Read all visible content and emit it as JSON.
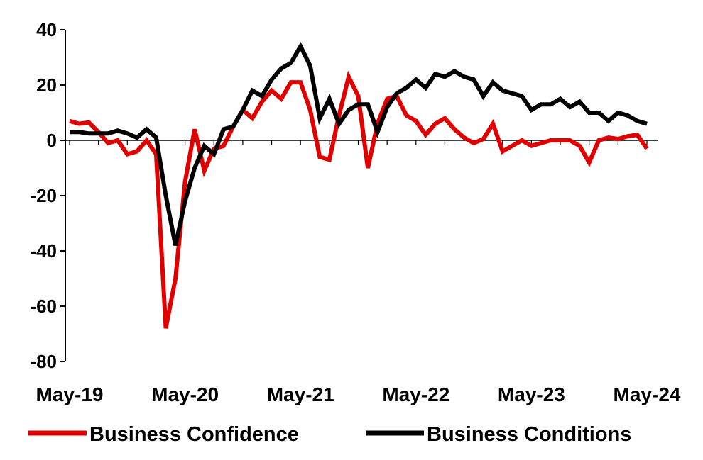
{
  "chart_data": {
    "type": "line",
    "title": "",
    "xlabel": "",
    "ylabel": "",
    "ylim": [
      -80,
      40
    ],
    "y_ticks": [
      40,
      20,
      0,
      -20,
      -40,
      -60,
      -80
    ],
    "x_tick_labels": [
      "May-19",
      "May-20",
      "May-21",
      "May-22",
      "May-23",
      "May-24"
    ],
    "x": [
      "May-19",
      "Jun-19",
      "Jul-19",
      "Aug-19",
      "Sep-19",
      "Oct-19",
      "Nov-19",
      "Dec-19",
      "Jan-20",
      "Feb-20",
      "Mar-20",
      "Apr-20",
      "May-20",
      "Jun-20",
      "Jul-20",
      "Aug-20",
      "Sep-20",
      "Oct-20",
      "Nov-20",
      "Dec-20",
      "Jan-21",
      "Feb-21",
      "Mar-21",
      "Apr-21",
      "May-21",
      "Jun-21",
      "Jul-21",
      "Aug-21",
      "Sep-21",
      "Oct-21",
      "Nov-21",
      "Dec-21",
      "Jan-22",
      "Feb-22",
      "Mar-22",
      "Apr-22",
      "May-22",
      "Jun-22",
      "Jul-22",
      "Aug-22",
      "Sep-22",
      "Oct-22",
      "Nov-22",
      "Dec-22",
      "Jan-23",
      "Feb-23",
      "Mar-23",
      "Apr-23",
      "May-23",
      "Jun-23",
      "Jul-23",
      "Aug-23",
      "Sep-23",
      "Oct-23",
      "Nov-23",
      "Dec-23",
      "Jan-24",
      "Feb-24",
      "Mar-24",
      "Apr-24",
      "May-24",
      "Jun-24"
    ],
    "series": [
      {
        "name": "Business Confidence",
        "color": "#e00000",
        "values": [
          7,
          6,
          6.5,
          3,
          -1,
          0,
          -5,
          -4,
          0,
          -5,
          -68,
          -50,
          -15,
          4,
          -11,
          -3,
          -2,
          5,
          11,
          8,
          14,
          18,
          15,
          21,
          21,
          11,
          -6,
          -7,
          9,
          23,
          16,
          -10,
          6,
          15,
          16,
          9,
          7,
          2,
          6,
          8,
          4,
          1,
          -1,
          0.5,
          6,
          -4,
          -2,
          0,
          -2,
          -1,
          0,
          0,
          0,
          -2,
          -8,
          0,
          1,
          0.5,
          1.5,
          2,
          -3,
          null
        ]
      },
      {
        "name": "Business Conditions",
        "color": "#000000",
        "values": [
          3,
          3,
          2.5,
          2.5,
          2.5,
          3.5,
          2.5,
          1,
          4,
          1,
          -20,
          -38,
          -22,
          -10,
          -2,
          -5,
          4,
          5,
          11,
          18,
          16,
          22,
          26,
          28,
          34,
          27,
          8,
          15,
          6,
          11,
          13,
          13,
          3,
          12,
          17,
          19,
          22,
          19,
          24,
          23,
          25,
          23,
          22,
          16,
          21,
          18,
          17,
          16,
          11,
          13,
          13,
          15,
          12,
          14,
          10,
          10,
          7,
          10,
          9,
          7,
          6,
          null
        ]
      }
    ],
    "grid": false,
    "legend_position": "bottom"
  }
}
